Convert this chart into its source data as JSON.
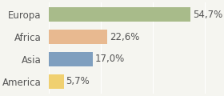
{
  "categories": [
    "Europa",
    "Africa",
    "Asia",
    "America"
  ],
  "values": [
    54.7,
    22.6,
    17.0,
    5.7
  ],
  "labels": [
    "54,7%",
    "22,6%",
    "17,0%",
    "5,7%"
  ],
  "bar_colors": [
    "#a8bb8a",
    "#e8b990",
    "#7f9fbf",
    "#f0d070"
  ],
  "background_color": "#f5f5f0",
  "xlim": [
    0,
    65
  ],
  "bar_height": 0.62,
  "label_fontsize": 8.5,
  "tick_fontsize": 8.5
}
